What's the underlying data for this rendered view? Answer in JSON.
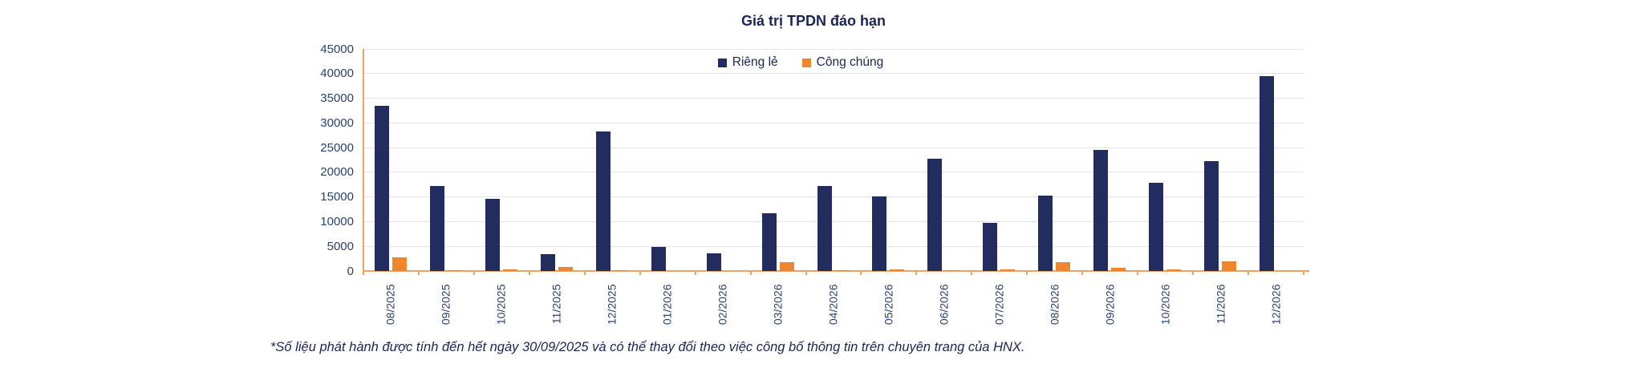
{
  "title": "Giá trị TPDN đáo hạn",
  "footnote": "*Số liệu phát hành được tính đến hết ngày 30/09/2025 và có thể thay đổi theo việc công bố thông tin trên chuyên trang của HNX.",
  "legend": {
    "items": [
      {
        "label": "Riêng lẻ",
        "color": "#232c5e"
      },
      {
        "label": "Công chúng",
        "color": "#ee8630"
      }
    ],
    "position": "top-center"
  },
  "colors": {
    "private_series": "#232c5e",
    "public_series": "#ee8630",
    "axis_line": "#f0a35f",
    "gridline": "#e3e3e3",
    "text": "#1b2556",
    "tick_text": "#2b4170",
    "background": "#ffffff"
  },
  "chart_data": {
    "type": "bar",
    "title": "Giá trị TPDN đáo hạn",
    "xlabel": "",
    "ylabel": "",
    "ylim": [
      0,
      45000
    ],
    "yticks": [
      0,
      5000,
      10000,
      15000,
      20000,
      25000,
      30000,
      35000,
      40000,
      45000
    ],
    "grid": true,
    "legend_position": "top-center",
    "categories": [
      "08/2025",
      "09/2025",
      "10/2025",
      "11/2025",
      "12/2025",
      "01/2026",
      "02/2026",
      "03/2026",
      "04/2026",
      "05/2026",
      "06/2026",
      "07/2026",
      "08/2026",
      "09/2026",
      "10/2026",
      "11/2026",
      "12/2026"
    ],
    "series": [
      {
        "name": "Riêng lẻ",
        "color": "#232c5e",
        "values": [
          33500,
          17300,
          14600,
          3400,
          28300,
          4900,
          3500,
          11700,
          17300,
          15100,
          22800,
          9800,
          15200,
          24600,
          17900,
          22300,
          39500
        ]
      },
      {
        "name": "Công chúng",
        "color": "#ee8630",
        "values": [
          2700,
          100,
          400,
          800,
          100,
          0,
          0,
          1800,
          100,
          250,
          100,
          400,
          1800,
          600,
          350,
          2000,
          0
        ]
      }
    ]
  }
}
